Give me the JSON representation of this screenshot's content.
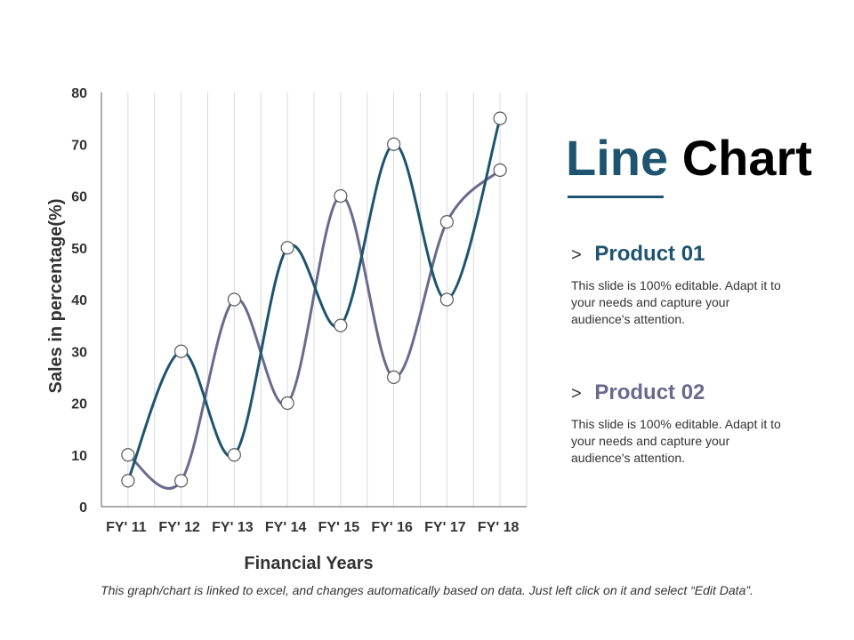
{
  "title": {
    "word1": "Line",
    "word2": "Chart"
  },
  "colors": {
    "accent": "#1e5470",
    "series1": "#1e5470",
    "series2": "#6a6a8e",
    "title_dark": "#000000",
    "grid": "#d9d9d9",
    "axis": "#595959",
    "marker_fill": "#ffffff",
    "marker_stroke": "#595959"
  },
  "products": [
    {
      "chevron": ">",
      "name": "Product 01",
      "description": "This slide is 100% editable. Adapt it to your needs and capture your audience's attention."
    },
    {
      "chevron": ">",
      "name": "Product 02",
      "description": "This slide is 100% editable. Adapt it to your needs and capture your audience's attention."
    }
  ],
  "footer": "This graph/chart is linked to excel, and changes automatically based on data. Just left click on it and select “Edit Data”.",
  "chart_data": {
    "type": "line",
    "smooth": true,
    "categories": [
      "FY' 11",
      "FY' 12",
      "FY' 13",
      "FY' 14",
      "FY' 15",
      "FY' 16",
      "FY' 17",
      "FY' 18"
    ],
    "series": [
      {
        "values": [
          5,
          30,
          10,
          50,
          35,
          70,
          40,
          75
        ]
      },
      {
        "values": [
          10,
          5,
          40,
          20,
          60,
          25,
          55,
          65
        ]
      }
    ],
    "xlabel": "Financial Years",
    "ylabel": "Sales in percentage(%)",
    "ylim": [
      0,
      80
    ],
    "yticks": [
      0,
      10,
      20,
      30,
      40,
      50,
      60,
      70,
      80
    ],
    "grid": "vertical",
    "legend": "none"
  }
}
